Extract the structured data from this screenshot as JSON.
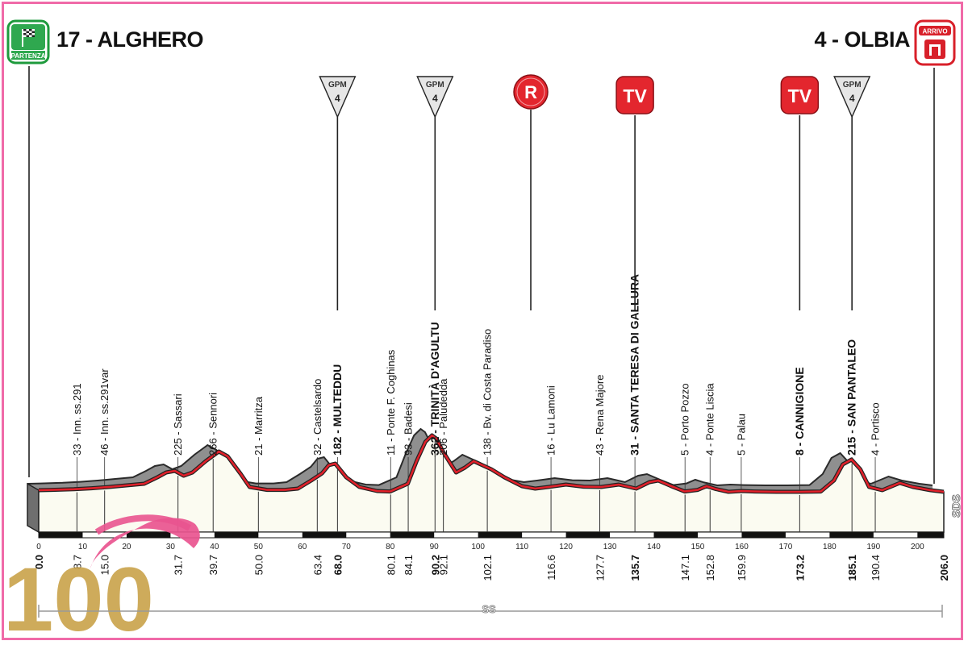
{
  "stage": {
    "start": "17 - ALGHERO",
    "finish": "4 - OLBIA",
    "start_badge": "PARTENZA",
    "finish_badge": "ARRIVO",
    "distance_unit": "SS",
    "side_label": "SDS",
    "logo_text": "100"
  },
  "chart_data": {
    "type": "area",
    "x_unit": "km",
    "xlim": [
      0,
      206
    ],
    "xticks": [
      0,
      10,
      20,
      30,
      40,
      50,
      60,
      70,
      80,
      90,
      100,
      110,
      120,
      130,
      140,
      150,
      160,
      170,
      180,
      190,
      200
    ],
    "profile": [
      [
        0,
        20
      ],
      [
        3,
        22
      ],
      [
        8,
        26
      ],
      [
        12,
        32
      ],
      [
        16,
        40
      ],
      [
        20,
        50
      ],
      [
        24,
        60
      ],
      [
        27,
        100
      ],
      [
        29,
        130
      ],
      [
        31,
        140
      ],
      [
        33,
        110
      ],
      [
        35,
        130
      ],
      [
        38,
        200
      ],
      [
        40,
        240
      ],
      [
        41,
        260
      ],
      [
        43,
        230
      ],
      [
        46,
        120
      ],
      [
        48,
        40
      ],
      [
        52,
        22
      ],
      [
        56,
        22
      ],
      [
        59,
        30
      ],
      [
        62,
        80
      ],
      [
        64.5,
        125
      ],
      [
        66,
        175
      ],
      [
        67.5,
        185
      ],
      [
        70,
        100
      ],
      [
        73,
        40
      ],
      [
        77,
        15
      ],
      [
        80,
        12
      ],
      [
        84,
        60
      ],
      [
        86,
        200
      ],
      [
        88,
        320
      ],
      [
        89.5,
        360
      ],
      [
        90.5,
        340
      ],
      [
        92,
        260
      ],
      [
        95,
        130
      ],
      [
        97,
        160
      ],
      [
        99,
        200
      ],
      [
        101,
        175
      ],
      [
        103,
        150
      ],
      [
        106,
        100
      ],
      [
        110,
        45
      ],
      [
        113,
        30
      ],
      [
        116,
        40
      ],
      [
        120,
        55
      ],
      [
        124,
        42
      ],
      [
        128,
        40
      ],
      [
        132,
        55
      ],
      [
        136,
        30
      ],
      [
        139,
        70
      ],
      [
        141,
        80
      ],
      [
        144,
        45
      ],
      [
        147,
        12
      ],
      [
        150,
        22
      ],
      [
        152,
        45
      ],
      [
        154,
        28
      ],
      [
        157,
        10
      ],
      [
        160,
        15
      ],
      [
        163,
        12
      ],
      [
        168,
        10
      ],
      [
        173,
        10
      ],
      [
        178,
        12
      ],
      [
        181,
        80
      ],
      [
        183,
        180
      ],
      [
        185,
        210
      ],
      [
        187,
        150
      ],
      [
        189,
        40
      ],
      [
        192,
        20
      ],
      [
        196,
        65
      ],
      [
        199,
        40
      ],
      [
        203,
        20
      ],
      [
        206,
        10
      ]
    ],
    "points": [
      {
        "km": "0.0",
        "name": "",
        "major": true
      },
      {
        "km": "8.7",
        "name": "33 - Inn. ss.291",
        "major": false
      },
      {
        "km": "15.0",
        "name": "46 - Inn. ss.291var",
        "major": false
      },
      {
        "km": "",
        "name": "",
        "major": false
      },
      {
        "km": "31.7",
        "name": "225 - Sassari",
        "major": false
      },
      {
        "km": "39.7",
        "name": "266 - Sennori",
        "major": false
      },
      {
        "km": "50.0",
        "name": "21 - Marritza",
        "major": false
      },
      {
        "km": "63.4",
        "name": "32 - Castelsardo",
        "major": false
      },
      {
        "km": "68.0",
        "name": "182 - MULTEDDU",
        "major": true
      },
      {
        "km": "80.1",
        "name": "11 - Ponte F. Coghinas",
        "major": false
      },
      {
        "km": "84.1",
        "name": "93 - Badesi",
        "major": false
      },
      {
        "km": "90.2",
        "name": "362 - TRINITÀ D'AGULTU",
        "major": true
      },
      {
        "km": "92.1",
        "name": "206 - Paludedda",
        "major": false
      },
      {
        "km": "102.1",
        "name": "138 - Bv. di Costa Paradiso",
        "major": false
      },
      {
        "km": "116.6",
        "name": "16 - Lu Lamoni",
        "major": false
      },
      {
        "km": "127.7",
        "name": "43 - Rena Majore",
        "major": false
      },
      {
        "km": "135.7",
        "name": "31 - SANTA TERESA DI GALLURA",
        "major": true
      },
      {
        "km": "147.1",
        "name": "5 - Porto Pozzo",
        "major": false
      },
      {
        "km": "152.8",
        "name": "4 - Ponte Liscia",
        "major": false
      },
      {
        "km": "159.9",
        "name": "5 - Palau",
        "major": false
      },
      {
        "km": "173.2",
        "name": "8 - CANNIGIONE",
        "major": true
      },
      {
        "km": "185.1",
        "name": "215 - SAN PANTALEO",
        "major": true
      },
      {
        "km": "190.4",
        "name": "4 - Portisco",
        "major": false
      },
      {
        "km": "206.0",
        "name": "",
        "major": true
      }
    ],
    "markers": [
      {
        "type": "GPM",
        "label": "GPM",
        "category": "4",
        "km": 68.0
      },
      {
        "type": "GPM",
        "label": "GPM",
        "category": "4",
        "km": 90.2
      },
      {
        "type": "R",
        "label": "R",
        "km": 112.0
      },
      {
        "type": "TV",
        "label": "TV",
        "km": 135.7
      },
      {
        "type": "TV",
        "label": "TV",
        "km": 173.2
      },
      {
        "type": "GPM",
        "label": "GPM",
        "category": "4",
        "km": 185.1
      }
    ],
    "colors": {
      "road": "#e0202a",
      "mountain": "#8a8a8a",
      "ground": "#fbfbf1",
      "frame": "#f06aa8",
      "marker_red": "#e3262e",
      "logo": "#e9548f",
      "logo_gold": "#c9a24a"
    }
  }
}
